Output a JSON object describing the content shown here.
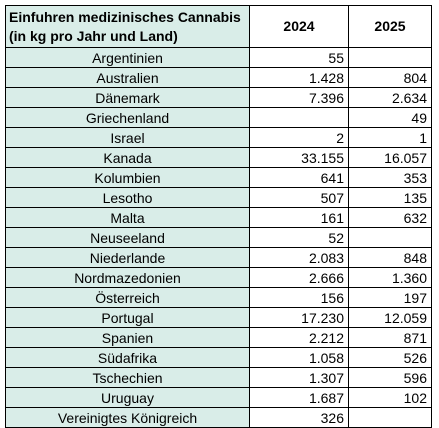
{
  "table": {
    "title_line1": "Einfuhren medizinisches Cannabis",
    "title_line2": "(in kg pro Jahr und Land)",
    "columns": [
      "2024",
      "2025"
    ],
    "rows": [
      {
        "country": "Argentinien",
        "y2024": "55",
        "y2025": ""
      },
      {
        "country": "Australien",
        "y2024": "1.428",
        "y2025": "804"
      },
      {
        "country": "Dänemark",
        "y2024": "7.396",
        "y2025": "2.634"
      },
      {
        "country": "Griechenland",
        "y2024": "",
        "y2025": "49"
      },
      {
        "country": "Israel",
        "y2024": "2",
        "y2025": "1"
      },
      {
        "country": "Kanada",
        "y2024": "33.155",
        "y2025": "16.057"
      },
      {
        "country": "Kolumbien",
        "y2024": "641",
        "y2025": "353"
      },
      {
        "country": "Lesotho",
        "y2024": "507",
        "y2025": "135"
      },
      {
        "country": "Malta",
        "y2024": "161",
        "y2025": "632"
      },
      {
        "country": "Neuseeland",
        "y2024": "52",
        "y2025": ""
      },
      {
        "country": "Niederlande",
        "y2024": "2.083",
        "y2025": "848"
      },
      {
        "country": "Nordmazedonien",
        "y2024": "2.666",
        "y2025": "1.360"
      },
      {
        "country": "Österreich",
        "y2024": "156",
        "y2025": "197"
      },
      {
        "country": "Portugal",
        "y2024": "17.230",
        "y2025": "12.059"
      },
      {
        "country": "Spanien",
        "y2024": "2.212",
        "y2025": "871"
      },
      {
        "country": "Südafrika",
        "y2024": "1.058",
        "y2025": "526"
      },
      {
        "country": "Tschechien",
        "y2024": "1.307",
        "y2025": "596"
      },
      {
        "country": "Uruguay",
        "y2024": "1.687",
        "y2025": "102"
      },
      {
        "country": "Vereinigtes Königreich",
        "y2024": "326",
        "y2025": ""
      }
    ]
  },
  "colors": {
    "country_fill": "#d9ede8",
    "grid": "#000000"
  }
}
